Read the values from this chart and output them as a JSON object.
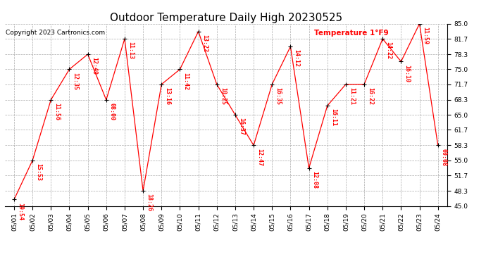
{
  "title": "Outdoor Temperature Daily High 20230525",
  "copyright": "Copyright 2023 Cartronics.com",
  "legend_label": "Temperature 1°F9",
  "dates": [
    "05/01",
    "05/02",
    "05/03",
    "05/04",
    "05/05",
    "05/06",
    "05/07",
    "05/08",
    "05/09",
    "05/10",
    "05/11",
    "05/12",
    "05/13",
    "05/14",
    "05/15",
    "05/16",
    "05/17",
    "05/18",
    "05/19",
    "05/20",
    "05/21",
    "05/22",
    "05/23",
    "05/24"
  ],
  "temps": [
    46.4,
    55.0,
    68.3,
    75.0,
    78.3,
    68.3,
    81.7,
    48.3,
    71.7,
    75.0,
    83.3,
    71.7,
    65.0,
    58.3,
    71.7,
    80.0,
    53.3,
    67.0,
    71.7,
    71.7,
    81.7,
    76.7,
    85.0,
    58.3
  ],
  "time_labels": [
    "19:54",
    "15:53",
    "11:56",
    "12:35",
    "12:49",
    "08:00",
    "11:13",
    "18:26",
    "13:16",
    "11:42",
    "13:22",
    "10:25",
    "16:37",
    "12:47",
    "16:35",
    "14:12",
    "12:08",
    "16:11",
    "11:21",
    "16:22",
    "14:22",
    "16:10",
    "11:59",
    "00:08"
  ],
  "ylim_min": 45.0,
  "ylim_max": 85.0,
  "yticks": [
    45.0,
    48.3,
    51.7,
    55.0,
    58.3,
    61.7,
    65.0,
    68.3,
    71.7,
    75.0,
    78.3,
    81.7,
    85.0
  ],
  "line_color": "red",
  "marker_color": "black",
  "bg_color": "white",
  "grid_color": "#aaaaaa",
  "title_color": "black",
  "label_color": "red",
  "copyright_color": "black",
  "title_fontsize": 11,
  "tick_fontsize": 6.5,
  "label_fontsize": 6
}
